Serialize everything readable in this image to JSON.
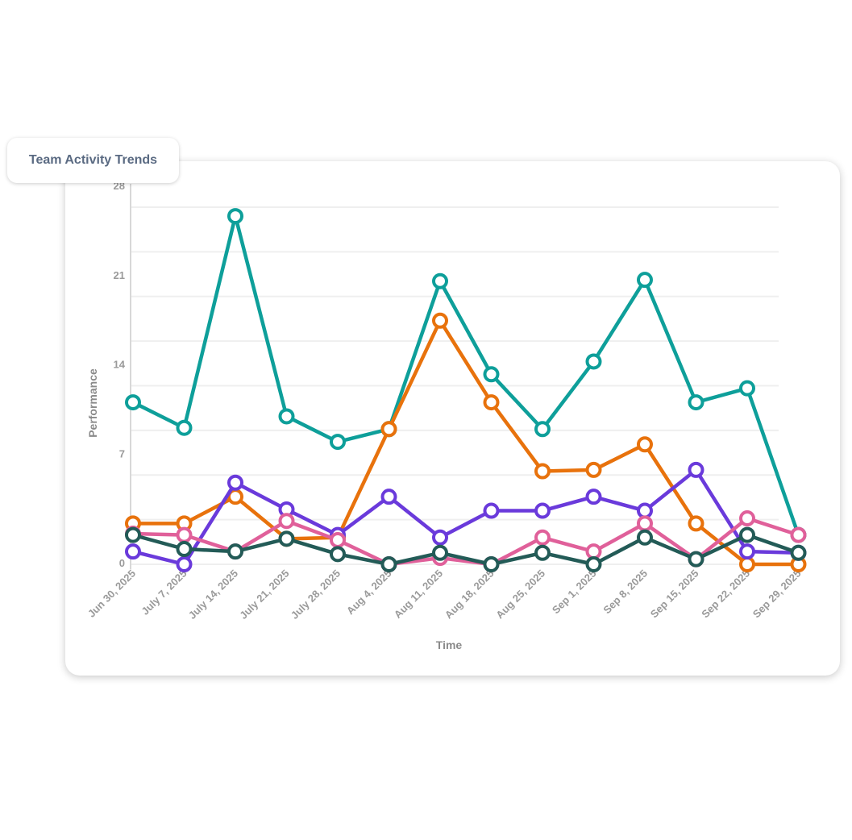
{
  "title": "Team Activity Trends",
  "chart_data": {
    "type": "line",
    "title": "Team Activity Trends",
    "xlabel": "Time",
    "ylabel": "Performance",
    "ylim": [
      0,
      28
    ],
    "yticks": [
      0,
      7,
      14,
      21,
      28
    ],
    "grid": true,
    "categories": [
      "Jun 30, 2025",
      "July 7, 2025",
      "July 14, 2025",
      "July 21, 2025",
      "July 28, 2025",
      "Aug 4, 2025",
      "Aug 11, 2025",
      "Aug 18, 2025",
      "Aug 25, 2025",
      "Sep 1, 2025",
      "Sep 8, 2025",
      "Sep 15, 2025",
      "Sep 22, 2025",
      "Sep 29, 2025"
    ],
    "series": [
      {
        "color": "#0e9f9a",
        "values": [
          12.7,
          10.7,
          27.3,
          11.6,
          9.6,
          10.6,
          22.2,
          14.9,
          10.6,
          15.9,
          22.3,
          12.7,
          13.8,
          2.3
        ]
      },
      {
        "color": "#e8720c",
        "values": [
          3.2,
          3.2,
          5.3,
          2.0,
          2.1,
          10.6,
          19.1,
          12.7,
          7.3,
          7.4,
          9.4,
          3.2,
          0,
          0
        ]
      },
      {
        "color": "#6a3adb",
        "values": [
          1.0,
          0,
          6.4,
          4.3,
          2.3,
          5.3,
          2.1,
          4.2,
          4.2,
          5.3,
          4.2,
          7.4,
          1.0,
          0.9
        ]
      },
      {
        "color": "#e0609a",
        "values": [
          2.4,
          2.3,
          1.0,
          3.4,
          1.9,
          0,
          0.5,
          0,
          2.1,
          1.0,
          3.2,
          0.4,
          3.6,
          2.3
        ]
      },
      {
        "color": "#235b57",
        "values": [
          2.3,
          1.2,
          1.0,
          2.0,
          0.8,
          0,
          0.9,
          0,
          0.9,
          0,
          2.1,
          0.4,
          2.3,
          0.9
        ]
      }
    ]
  }
}
